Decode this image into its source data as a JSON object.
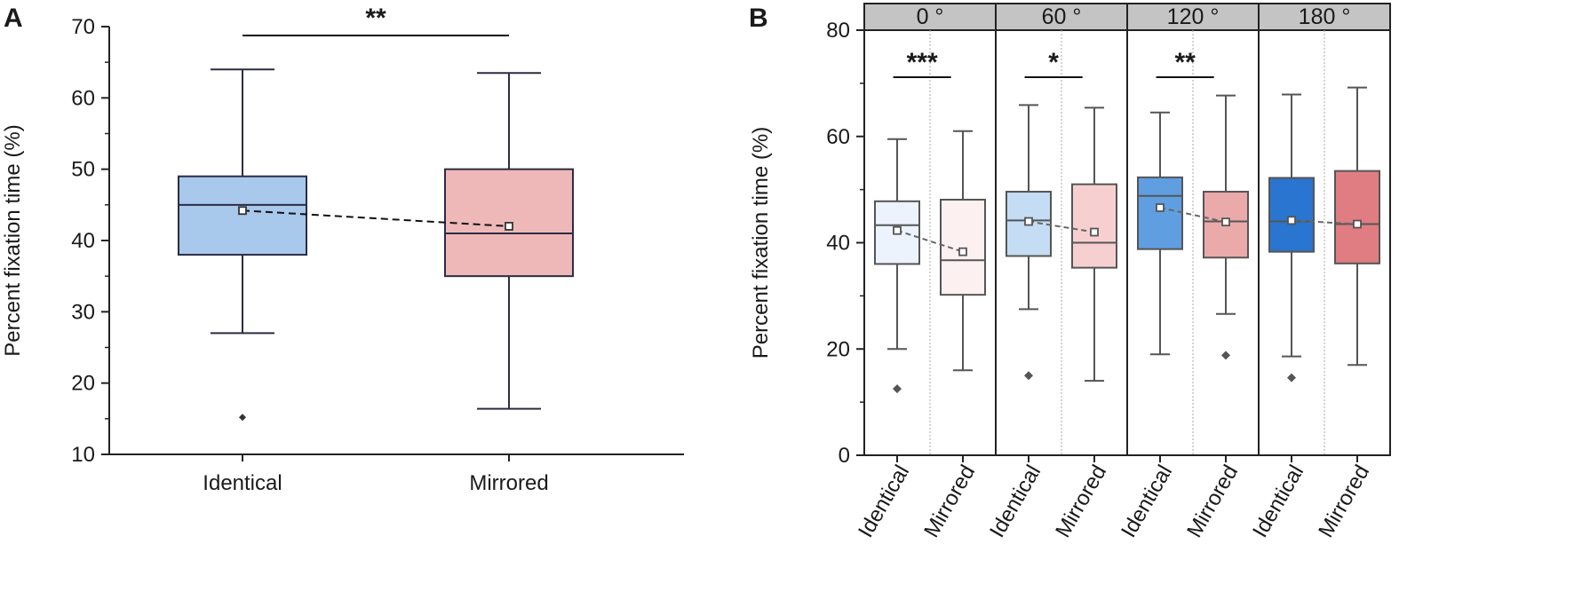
{
  "chart_data": [
    {
      "panel": "A",
      "type": "box",
      "ylabel": "Percent fixation time (%)",
      "xlabel": "",
      "ylim": [
        10,
        70
      ],
      "yticks": [
        10,
        20,
        30,
        40,
        50,
        60,
        70
      ],
      "categories": [
        "Identical",
        "Mirrored"
      ],
      "boxes": [
        {
          "category": "Identical",
          "whisker_low": 27,
          "q1": 38,
          "median": 45,
          "q3": 49,
          "whisker_high": 64,
          "mean": 44.2,
          "outliers": [
            15.2
          ],
          "color": "#a8c8ec"
        },
        {
          "category": "Mirrored",
          "whisker_low": 16.4,
          "q1": 35,
          "median": 41,
          "q3": 50,
          "whisker_high": 63.5,
          "mean": 42,
          "outliers": [],
          "color": "#efb8b8"
        }
      ],
      "significance": [
        {
          "from": "Identical",
          "to": "Mirrored",
          "label": "**"
        }
      ]
    },
    {
      "panel": "B",
      "type": "box",
      "ylabel": "Percent fixation time (%)",
      "xlabel": "",
      "ylim": [
        0,
        80
      ],
      "yticks": [
        0,
        20,
        40,
        60,
        80
      ],
      "facets": [
        {
          "label": "0 °",
          "significance": "***",
          "boxes": [
            {
              "category": "Identical",
              "whisker_low": 20,
              "q1": 36,
              "median": 43.3,
              "q3": 47.8,
              "whisker_high": 59.5,
              "mean": 42.3,
              "outliers": [
                12.5
              ],
              "color": "#ecf3fc"
            },
            {
              "category": "Mirrored",
              "whisker_low": 16,
              "q1": 30.2,
              "median": 36.7,
              "q3": 48.1,
              "whisker_high": 61,
              "mean": 38.3,
              "outliers": [],
              "color": "#fdf0f0"
            }
          ]
        },
        {
          "label": "60 °",
          "significance": "*",
          "boxes": [
            {
              "category": "Identical",
              "whisker_low": 27.5,
              "q1": 37.5,
              "median": 44.2,
              "q3": 49.6,
              "whisker_high": 65.9,
              "mean": 44,
              "outliers": [
                15
              ],
              "color": "#c4dcf4"
            },
            {
              "category": "Mirrored",
              "whisker_low": 14,
              "q1": 35.3,
              "median": 40,
              "q3": 51,
              "whisker_high": 65.4,
              "mean": 42,
              "outliers": [],
              "color": "#f6d0d0"
            }
          ]
        },
        {
          "label": "120 °",
          "significance": "**",
          "boxes": [
            {
              "category": "Identical",
              "whisker_low": 19,
              "q1": 38.8,
              "median": 48.8,
              "q3": 52.3,
              "whisker_high": 64.5,
              "mean": 46.6,
              "outliers": [],
              "color": "#5f9ee0"
            },
            {
              "category": "Mirrored",
              "whisker_low": 26.6,
              "q1": 37.2,
              "median": 44,
              "q3": 49.6,
              "whisker_high": 67.7,
              "mean": 43.9,
              "outliers": [
                18.8
              ],
              "color": "#ebaaaa"
            }
          ]
        },
        {
          "label": "180 °",
          "significance": "",
          "boxes": [
            {
              "category": "Identical",
              "whisker_low": 18.6,
              "q1": 38.3,
              "median": 44,
              "q3": 52.2,
              "whisker_high": 67.9,
              "mean": 44.2,
              "outliers": [
                14.6
              ],
              "color": "#2a75cf"
            },
            {
              "category": "Mirrored",
              "whisker_low": 17,
              "q1": 36.1,
              "median": 43.5,
              "q3": 53.5,
              "whisker_high": 69.2,
              "mean": 43.5,
              "outliers": [],
              "color": "#e07d82"
            }
          ]
        }
      ]
    }
  ]
}
